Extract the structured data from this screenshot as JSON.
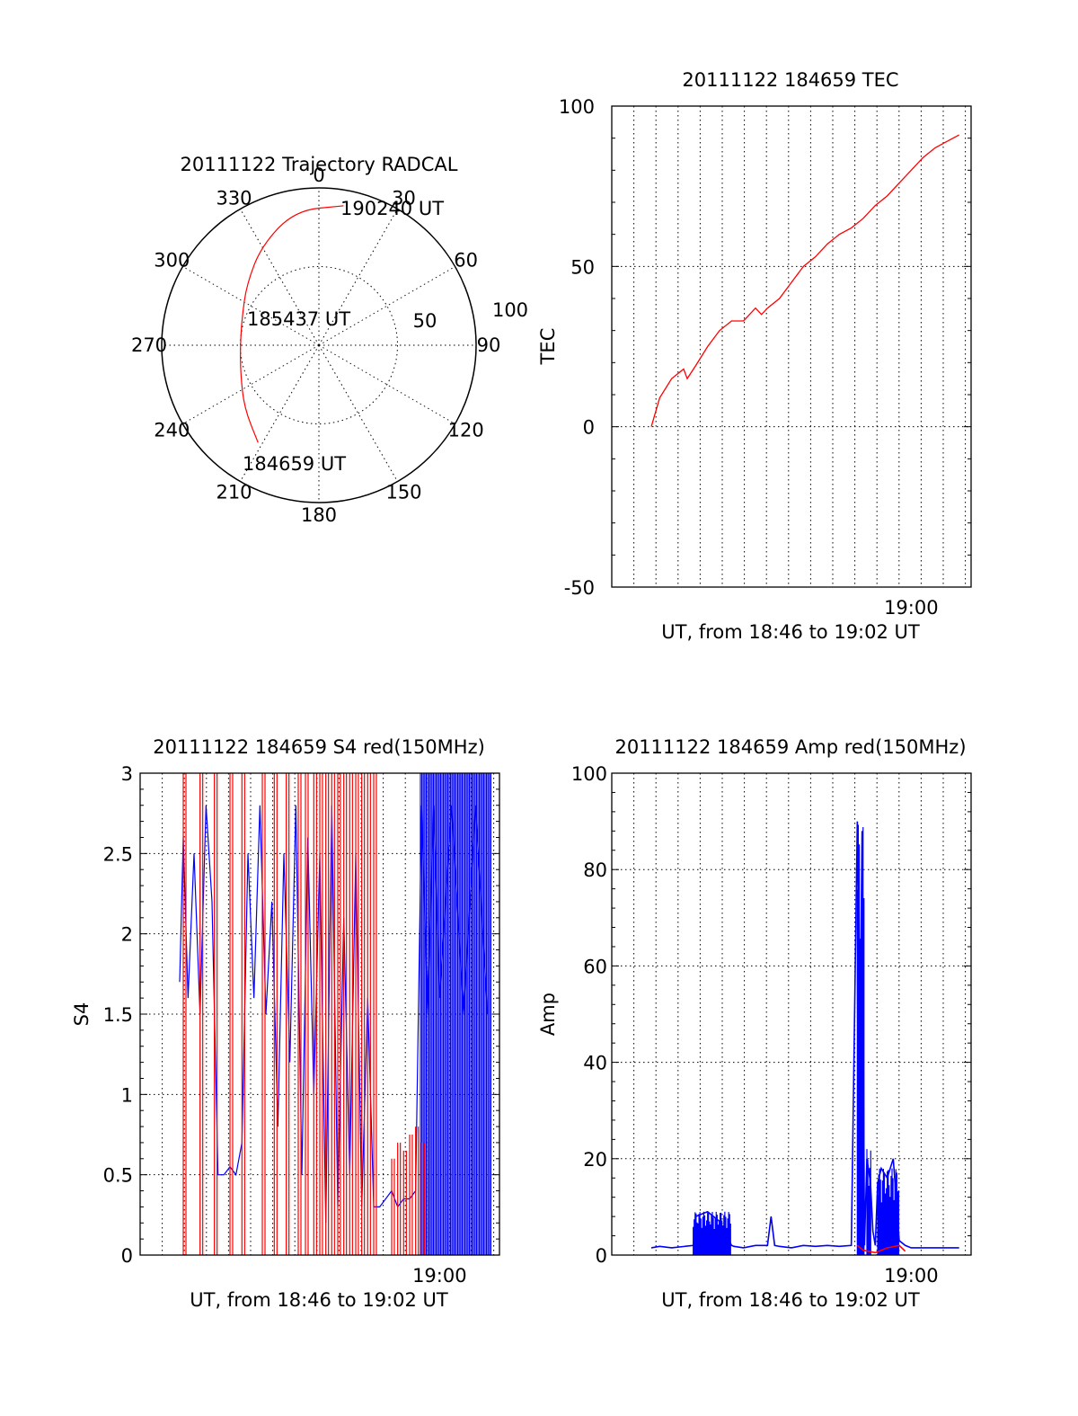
{
  "colors": {
    "red": "#ff0000",
    "blue": "#0000ff",
    "axis": "#000000"
  },
  "polar": {
    "title": "20111122 Trajectory RADCAL",
    "azimuth_labels": [
      "0",
      "30",
      "60",
      "90",
      "120",
      "150",
      "180",
      "210",
      "240",
      "270",
      "300",
      "330"
    ],
    "radius_labels": [
      "50",
      "100"
    ],
    "time_labels": {
      "start": "184659 UT",
      "mid": "185437 UT",
      "end": "190240 UT"
    },
    "trajectory": [
      {
        "az": 212,
        "r": 73
      },
      {
        "az": 230,
        "r": 62
      },
      {
        "az": 250,
        "r": 53
      },
      {
        "az": 270,
        "r": 50
      },
      {
        "az": 290,
        "r": 52
      },
      {
        "az": 310,
        "r": 60
      },
      {
        "az": 330,
        "r": 73
      },
      {
        "az": 350,
        "r": 87
      },
      {
        "az": 10,
        "r": 90
      }
    ]
  },
  "chart_data": [
    {
      "type": "line",
      "title": "20111122 184659 TEC",
      "ylabel": "TEC",
      "xlabel": "UT, from 18:46 to 19:02 UT",
      "ylim": [
        -50,
        100
      ],
      "yticks": [
        "100",
        "50",
        "0",
        "-50"
      ],
      "xticks": [
        {
          "t": 19.0,
          "label": "19:00"
        }
      ],
      "xlim": [
        18.75,
        19.05
      ],
      "grid": true,
      "series": [
        {
          "color": "#ff0000",
          "x": [
            18.783,
            18.79,
            18.8,
            18.81,
            18.813,
            18.82,
            18.83,
            18.84,
            18.85,
            18.86,
            18.87,
            18.875,
            18.88,
            18.89,
            18.9,
            18.91,
            18.92,
            18.93,
            18.94,
            18.95,
            18.96,
            18.97,
            18.98,
            18.99,
            19.0,
            19.01,
            19.02,
            19.03,
            19.04
          ],
          "y": [
            0,
            9,
            15,
            18,
            15,
            19,
            25,
            30,
            33,
            33,
            37,
            35,
            37,
            40,
            45,
            50,
            53,
            57,
            60,
            62,
            65,
            69,
            72,
            76,
            80,
            84,
            87,
            89,
            91
          ]
        }
      ]
    },
    {
      "type": "line",
      "title": "20111122 184659 S4 red(150MHz)",
      "ylabel": "S4",
      "xlabel": "UT, from 18:46 to 19:02 UT",
      "ylim": [
        0,
        3
      ],
      "yticks": [
        "3",
        "2.5",
        "2",
        "1.5",
        "1",
        "0.5",
        "0"
      ],
      "xticks": [
        {
          "t": 19.0,
          "label": "19:00"
        }
      ],
      "xlim": [
        18.75,
        19.05
      ],
      "grid": true,
      "series": [
        {
          "color": "#0000ff",
          "x": [
            18.783,
            18.786,
            18.79,
            18.795,
            18.8,
            18.805,
            18.81,
            18.815,
            18.82,
            18.825,
            18.83,
            18.835,
            18.84,
            18.845,
            18.85,
            18.855,
            18.86,
            18.865,
            18.87,
            18.875,
            18.88,
            18.885,
            18.89,
            18.895,
            18.9,
            18.905,
            18.91,
            18.915,
            18.92,
            18.925,
            18.93,
            18.935,
            18.94,
            18.945,
            18.95,
            18.955,
            18.96,
            18.965,
            18.97,
            18.975,
            18.98,
            18.985,
            18.99,
            18.995,
            19.0,
            19.01,
            19.02,
            19.03,
            19.04
          ],
          "y": [
            1.7,
            2.6,
            1.6,
            2.5,
            1.5,
            2.8,
            2.2,
            0.5,
            0.5,
            0.55,
            0.5,
            0.7,
            2.5,
            1.6,
            2.8,
            1.5,
            2.2,
            0.8,
            2.5,
            1.2,
            2.8,
            0.5,
            2.6,
            1.0,
            2.5,
            0.2,
            2.8,
            0.3,
            2.1,
            0.5,
            2.5,
            0.3,
            1.6,
            0.3,
            0.3,
            0.35,
            0.4,
            0.3,
            0.35,
            0.35,
            0.4,
            2.8,
            1.5,
            2.8,
            1.6,
            2.8,
            1.5,
            2.8,
            1.5
          ]
        },
        {
          "color": "#ff0000",
          "x": [
            18.786,
            18.8,
            18.812,
            18.825,
            18.835,
            18.852,
            18.862,
            18.872,
            18.882,
            18.888,
            18.895,
            18.9,
            18.905,
            18.91,
            18.915,
            18.92,
            18.925,
            18.93,
            18.935,
            18.94,
            18.945,
            18.96,
            18.965,
            18.97,
            18.975,
            18.98,
            18.985
          ],
          "y": [
            3,
            3,
            3,
            3,
            3,
            3,
            3,
            3,
            3,
            3,
            3,
            3,
            3,
            3,
            3,
            3,
            3,
            3,
            3,
            3,
            3,
            0.6,
            0.7,
            0.65,
            0.75,
            0.8,
            0.7
          ]
        }
      ]
    },
    {
      "type": "line",
      "title": "20111122 184659 Amp red(150MHz)",
      "ylabel": "Amp",
      "xlabel": "UT, from 18:46 to 19:02 UT",
      "ylim": [
        0,
        100
      ],
      "yticks": [
        "100",
        "80",
        "60",
        "40",
        "20",
        "0"
      ],
      "xticks": [
        {
          "t": 19.0,
          "label": "19:00"
        }
      ],
      "xlim": [
        18.75,
        19.05
      ],
      "grid": true,
      "series": [
        {
          "color": "#0000ff",
          "x": [
            18.783,
            18.79,
            18.8,
            18.818,
            18.82,
            18.83,
            18.84,
            18.85,
            18.852,
            18.86,
            18.87,
            18.88,
            18.883,
            18.886,
            18.89,
            18.9,
            18.91,
            18.92,
            18.93,
            18.94,
            18.95,
            18.955,
            18.957,
            18.959,
            18.961,
            18.963,
            18.966,
            18.968,
            18.97,
            18.972,
            18.975,
            18.98,
            18.985,
            18.99,
            18.995,
            19.0,
            19.01,
            19.02,
            19.03,
            19.04
          ],
          "y": [
            1.5,
            1.8,
            1.5,
            2,
            8,
            9,
            7,
            2,
            1.8,
            1.5,
            2,
            2,
            8,
            2,
            1.8,
            1.5,
            2,
            1.8,
            2,
            1.8,
            2,
            90,
            40,
            88,
            2,
            20,
            15,
            5,
            2,
            15,
            18,
            16,
            20,
            3,
            2,
            1.5,
            1.5,
            1.5,
            1.5,
            1.5
          ]
        },
        {
          "color": "#ff0000",
          "x": [
            18.955,
            18.96,
            18.97,
            18.98,
            18.99,
            18.995
          ],
          "y": [
            2,
            1,
            0.5,
            1.5,
            2,
            0.8
          ]
        }
      ]
    }
  ]
}
